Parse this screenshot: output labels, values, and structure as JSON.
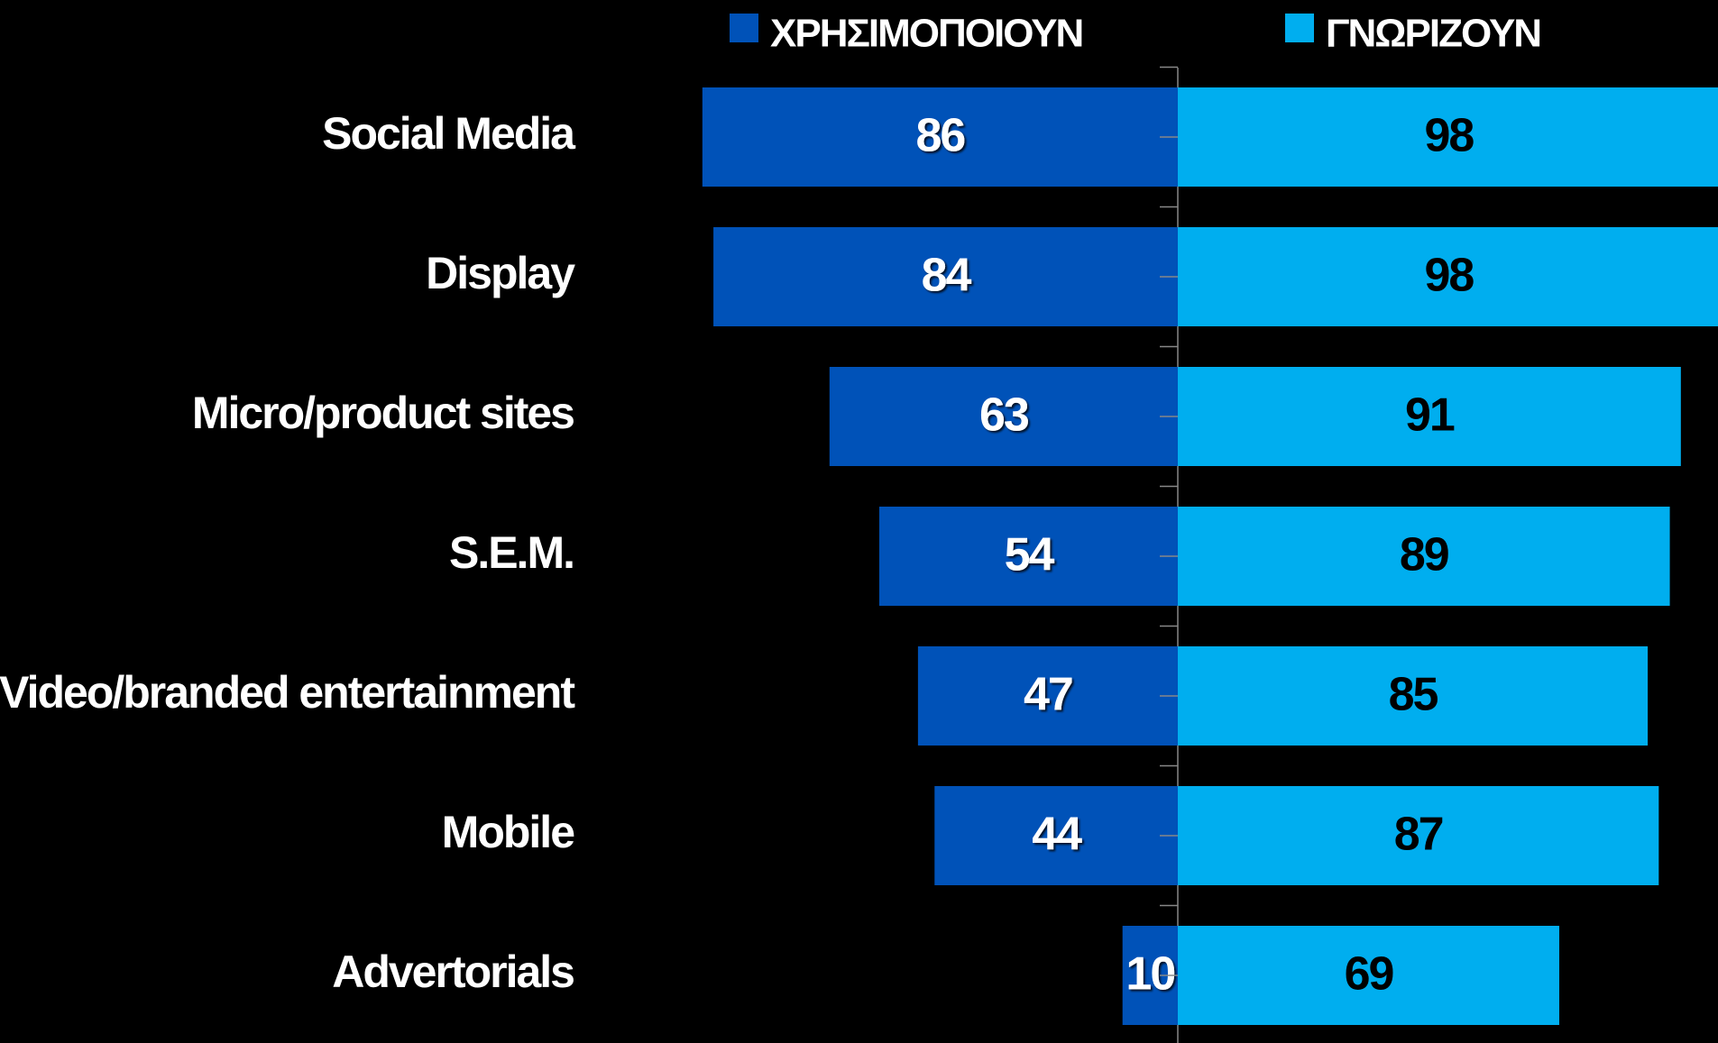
{
  "chart_data": {
    "type": "butterfly-bar",
    "categories": [
      "Social Media",
      "Display",
      "Micro/product sites",
      "S.E.M.",
      "Video/branded entertainment",
      "Mobile",
      "Advertorials"
    ],
    "series": [
      {
        "name": "ΧΡΗΣΙΜΟΠΟΙΟΥΝ",
        "color": "#0052b8",
        "values": [
          86,
          84,
          63,
          54,
          47,
          44,
          10
        ]
      },
      {
        "name": "ΓΝΩΡΙΖΟΥΝ",
        "color": "#00aeef",
        "values": [
          98,
          98,
          91,
          89,
          85,
          87,
          69
        ]
      }
    ]
  }
}
